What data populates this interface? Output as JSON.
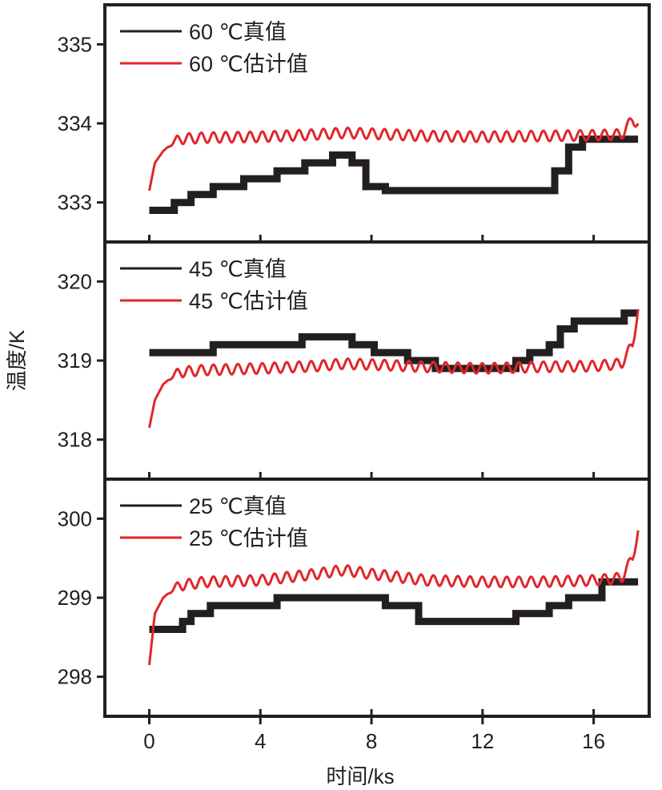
{
  "chart_data": {
    "type": "line",
    "xlabel": "时间/ks",
    "ylabel": "温度/K",
    "xlim": [
      -1.6,
      18
    ],
    "xticks": [
      0,
      4,
      8,
      12,
      16
    ],
    "colors": {
      "true": "#231f20",
      "estimate": "#e0262b"
    },
    "panels": [
      {
        "ylim": [
          332.5,
          335.5
        ],
        "yticks": [
          333,
          334,
          335
        ],
        "legend": [
          {
            "label": "60 ℃真值",
            "color": "#231f20"
          },
          {
            "label": "60 ℃估计值",
            "color": "#e0262b"
          }
        ],
        "series": [
          {
            "name": "60 ℃真值",
            "role": "true",
            "x": [
              0,
              0.9,
              1.5,
              2.3,
              3.4,
              4.6,
              5.6,
              6.6,
              7.3,
              7.8,
              8.5,
              10,
              12,
              14.2,
              14.6,
              15.1,
              15.6,
              17.6
            ],
            "y": [
              332.9,
              333,
              333.1,
              333.2,
              333.3,
              333.4,
              333.5,
              333.6,
              333.5,
              333.2,
              333.15,
              333.15,
              333.15,
              333.15,
              333.4,
              333.7,
              333.8,
              333.8
            ]
          },
          {
            "name": "60 ℃估计值",
            "role": "estimate",
            "x": [
              0,
              0.2,
              0.5,
              1,
              2,
              4,
              6,
              7,
              8,
              10,
              12,
              14,
              16,
              17,
              17.4,
              17.6
            ],
            "y": [
              333.15,
              333.5,
              333.65,
              333.8,
              333.82,
              333.83,
              333.86,
              333.88,
              333.87,
              333.84,
              333.83,
              333.84,
              333.85,
              333.86,
              334.05,
              334.0
            ]
          }
        ]
      },
      {
        "ylim": [
          317.5,
          320.5
        ],
        "yticks": [
          318,
          319,
          320
        ],
        "legend": [
          {
            "label": "45 ℃真值",
            "color": "#231f20"
          },
          {
            "label": "45 ℃估计值",
            "color": "#e0262b"
          }
        ],
        "series": [
          {
            "name": "45 ℃真值",
            "role": "true",
            "x": [
              0,
              2.3,
              5.5,
              7.3,
              8.1,
              9.3,
              10.3,
              12.5,
              13.2,
              13.7,
              14.4,
              14.8,
              15.3,
              17.1,
              17.6
            ],
            "y": [
              319.1,
              319.2,
              319.3,
              319.2,
              319.1,
              319,
              318.9,
              318.9,
              319,
              319.1,
              319.2,
              319.4,
              319.5,
              319.6,
              319.6
            ]
          },
          {
            "name": "45 ℃估计值",
            "role": "estimate",
            "x": [
              0,
              0.2,
              0.5,
              1,
              2,
              4,
              6,
              7,
              8,
              10,
              12,
              14,
              16,
              17,
              17.4,
              17.6
            ],
            "y": [
              318.15,
              318.5,
              318.7,
              318.85,
              318.88,
              318.9,
              318.93,
              318.96,
              318.95,
              318.92,
              318.9,
              318.92,
              318.93,
              318.96,
              319.2,
              319.65
            ]
          }
        ]
      },
      {
        "ylim": [
          297.5,
          300.5
        ],
        "yticks": [
          298,
          299,
          300
        ],
        "legend": [
          {
            "label": "25 ℃真值",
            "color": "#231f20"
          },
          {
            "label": "25 ℃估计值",
            "color": "#e0262b"
          }
        ],
        "series": [
          {
            "name": "25 ℃真值",
            "role": "true",
            "x": [
              0,
              1.2,
              1.5,
              2.2,
              4.6,
              7.5,
              8.5,
              9.7,
              12,
              13.2,
              14.4,
              15.1,
              16.3,
              17.6
            ],
            "y": [
              298.6,
              298.7,
              298.8,
              298.9,
              299,
              299,
              298.9,
              298.7,
              298.7,
              298.8,
              298.9,
              299,
              299.2,
              299.2
            ]
          },
          {
            "name": "25 ℃估计值",
            "role": "estimate",
            "x": [
              0,
              0.2,
              0.5,
              1,
              2,
              4,
              6,
              7,
              8,
              10,
              12,
              14,
              16,
              17,
              17.4,
              17.6
            ],
            "y": [
              298.15,
              298.8,
              299.0,
              299.15,
              299.2,
              299.22,
              299.3,
              299.35,
              299.3,
              299.22,
              299.2,
              299.2,
              299.22,
              299.25,
              299.5,
              299.85
            ]
          }
        ]
      }
    ]
  }
}
